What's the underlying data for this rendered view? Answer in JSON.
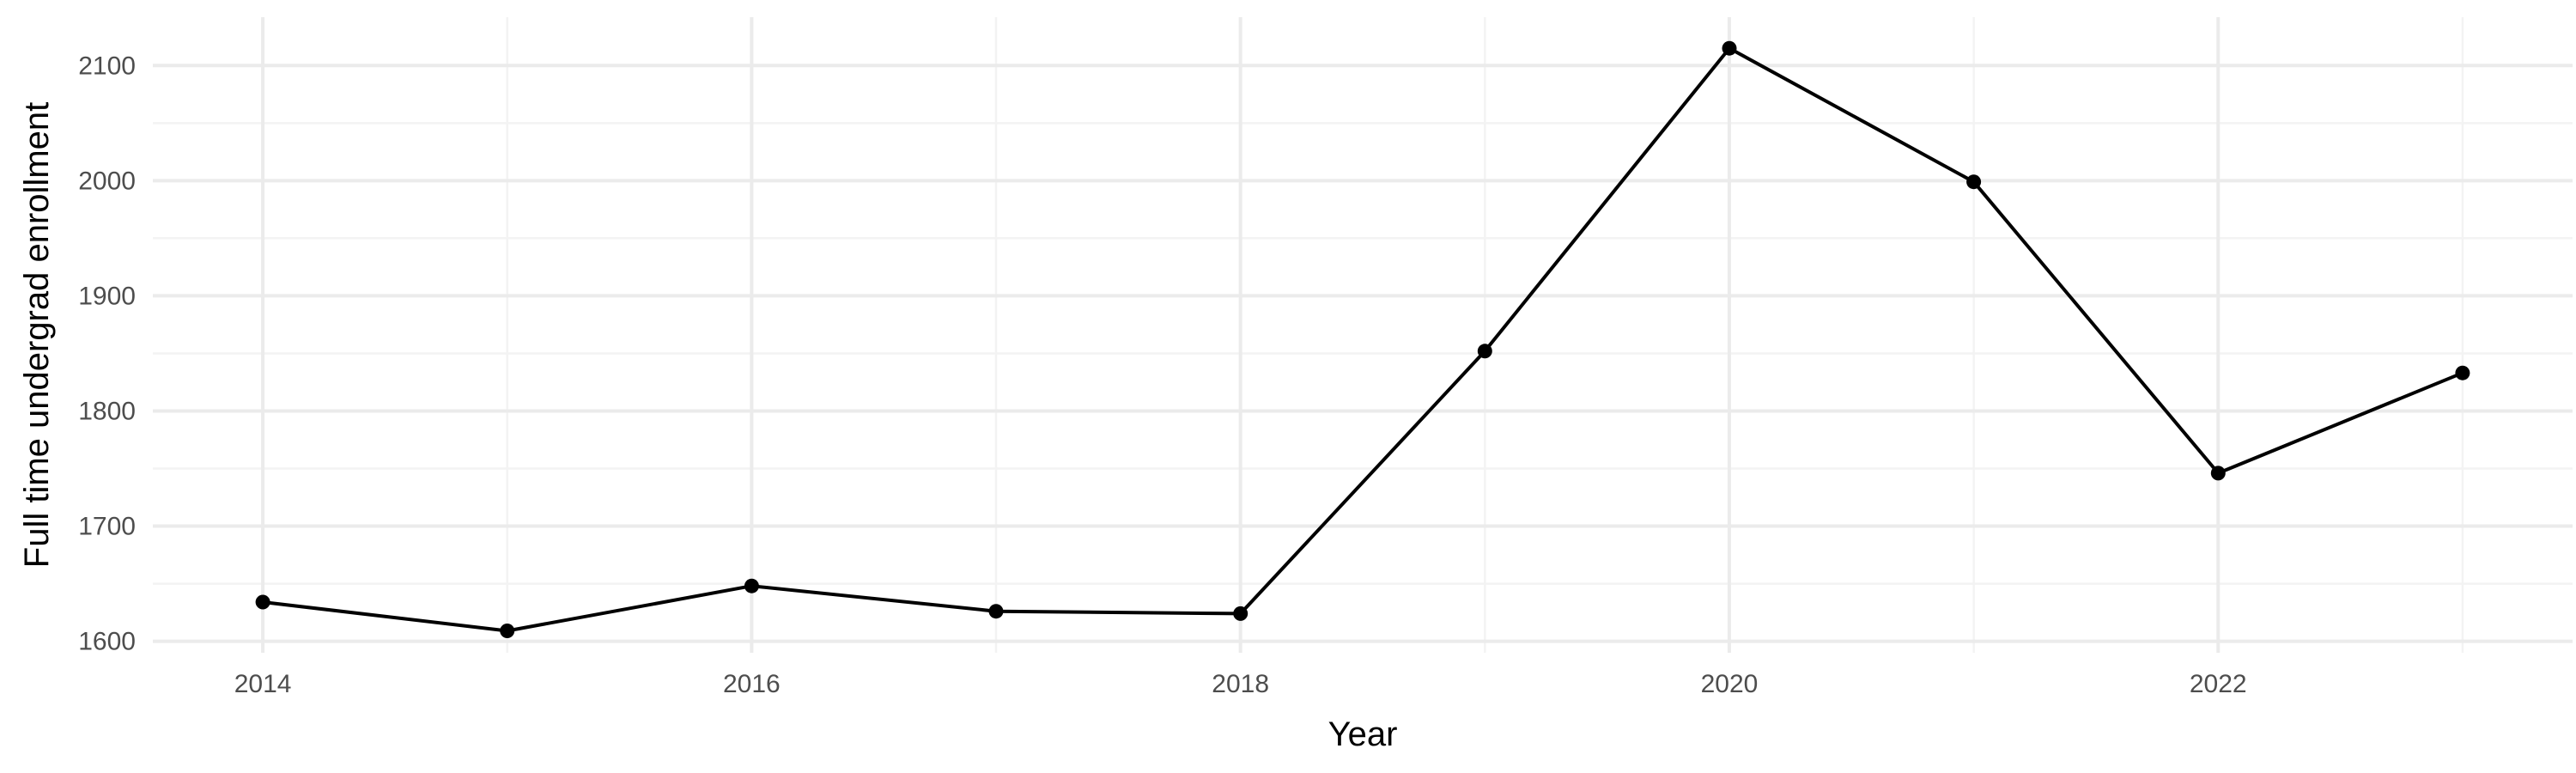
{
  "chart_data": {
    "type": "line",
    "title": "",
    "xlabel": "Year",
    "ylabel": "Full time undergrad enrollment",
    "xlim": [
      2013.55,
      2023.45
    ],
    "ylim": [
      1590,
      2142
    ],
    "x_ticks": [
      2014,
      2016,
      2018,
      2020,
      2022
    ],
    "y_ticks": [
      1600,
      1700,
      1800,
      1900,
      2000,
      2100
    ],
    "grid": true,
    "legend": "none",
    "series": [
      {
        "x": [
          2014,
          2015,
          2016,
          2017,
          2018,
          2019,
          2020,
          2021,
          2022,
          2023
        ],
        "values": [
          1634,
          1609,
          1648,
          1626,
          1624,
          1852,
          2115,
          1999,
          1746,
          1833
        ],
        "color": "#000000"
      }
    ]
  }
}
